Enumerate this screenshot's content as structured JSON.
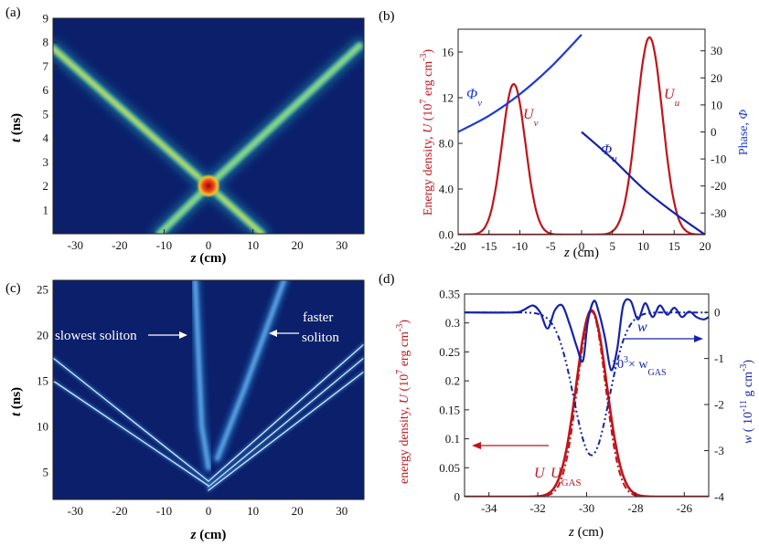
{
  "panels": {
    "a": {
      "label": "(a)"
    },
    "b": {
      "label": "(b)"
    },
    "c": {
      "label": "(c)"
    },
    "d": {
      "label": "(d)"
    }
  },
  "colors": {
    "heatmap_bg": "#0b1f6b",
    "red_curve": "#c0141b",
    "blue_curve": "#1a3ad8",
    "dark_blue_curve": "#1523a8"
  },
  "chart_data": [
    {
      "id": "a",
      "type": "heatmap",
      "xlabel": "z (cm)",
      "ylabel": "t (ns)",
      "xlim": [
        -35,
        35
      ],
      "ylim": [
        0,
        9
      ],
      "xticks": [
        -30,
        -20,
        -10,
        0,
        10,
        20,
        30
      ],
      "yticks": [
        1,
        2,
        3,
        4,
        5,
        6,
        7,
        8,
        9
      ],
      "tracks": [
        {
          "name": "",
          "points": [
            [
              -35,
              7.75
            ],
            [
              0,
              2.0
            ],
            [
              12,
              0
            ]
          ]
        },
        {
          "name": "",
          "points": [
            [
              34,
              7.85
            ],
            [
              0,
              2.0
            ],
            [
              -11,
              0
            ]
          ]
        }
      ],
      "collision": [
        0,
        2.0
      ]
    },
    {
      "id": "b",
      "type": "line",
      "xlabel": "z (cm)",
      "ylabel": "Energy density, U (10^7 erg cm^-3)",
      "y2label": "Phase, Φ",
      "xlim": [
        -20,
        20
      ],
      "ylim": [
        0,
        18
      ],
      "y2lim": [
        -38,
        38
      ],
      "xticks": [
        -20,
        -15,
        -10,
        -5,
        0,
        5,
        10,
        15,
        20
      ],
      "yticks": [
        0.0,
        4.0,
        8.0,
        12,
        16
      ],
      "ytick_labels": [
        "0.0",
        "4.0",
        "8.0",
        "12",
        "16"
      ],
      "y2ticks": [
        -30,
        -20,
        -10,
        0,
        10,
        20,
        30
      ],
      "series": [
        {
          "name": "U_v",
          "axis": "left",
          "shape": "gaussian",
          "center": -11,
          "sigma": 1.9,
          "peak": 13.2
        },
        {
          "name": "U_u",
          "axis": "left",
          "shape": "gaussian",
          "center": 11,
          "sigma": 2.1,
          "peak": 17.3
        },
        {
          "name": "Φ_v",
          "axis": "right",
          "x": [
            -20,
            -15,
            -10,
            -5,
            0
          ],
          "y": [
            0,
            6,
            14,
            24,
            36
          ]
        },
        {
          "name": "Φ_u",
          "axis": "right",
          "x": [
            0,
            5,
            10,
            15,
            20
          ],
          "y": [
            0,
            -10,
            -21,
            -30,
            -38
          ]
        }
      ],
      "annotations": {
        "phi_v": {
          "sym": "Φ",
          "sub": "v"
        },
        "u_v": {
          "sym": "U",
          "sub": "v"
        },
        "phi_u": {
          "sym": "Φ",
          "sub": "u"
        },
        "u_u": {
          "sym": "U",
          "sub": "u"
        }
      }
    },
    {
      "id": "c",
      "type": "heatmap",
      "xlabel": "z (cm)",
      "ylabel": "t (ns)",
      "xlim": [
        -35,
        35
      ],
      "ylim": [
        2,
        26
      ],
      "xticks": [
        -30,
        -20,
        -10,
        0,
        10,
        20,
        30
      ],
      "yticks": [
        5,
        10,
        15,
        20,
        25
      ],
      "tracks": [
        {
          "name": "slowest soliton",
          "points": [
            [
              -3,
              26
            ],
            [
              -1.5,
              10
            ],
            [
              0,
              5.5
            ]
          ]
        },
        {
          "name": "faster soliton",
          "points": [
            [
              17,
              26
            ],
            [
              8,
              14
            ],
            [
              2,
              6.5
            ]
          ]
        },
        {
          "name": "",
          "points": [
            [
              0,
              4
            ],
            [
              35,
              19
            ]
          ]
        },
        {
          "name": "",
          "points": [
            [
              0,
              3.4
            ],
            [
              35,
              17.5
            ]
          ]
        },
        {
          "name": "",
          "points": [
            [
              0,
              3
            ],
            [
              35,
              16
            ]
          ]
        },
        {
          "name": "",
          "points": [
            [
              0,
              4
            ],
            [
              -35,
              17.5
            ]
          ]
        },
        {
          "name": "",
          "points": [
            [
              0,
              3.5
            ],
            [
              -35,
              15
            ]
          ]
        }
      ],
      "annotations": {
        "slowest": "slowest soliton",
        "faster_1": "faster",
        "faster_2": "soliton"
      }
    },
    {
      "id": "d",
      "type": "line",
      "xlabel": "z (cm)",
      "ylabel": "energy density, U (10^7 erg cm^-3)",
      "y2label": "w ( 10^-11 g cm^-3)",
      "xlim": [
        -35,
        -25
      ],
      "ylim": [
        0,
        0.35
      ],
      "y2lim": [
        -4,
        0.4
      ],
      "xticks": [
        -34,
        -32,
        -30,
        -28,
        -26
      ],
      "yticks": [
        0,
        0.05,
        0.1,
        0.15,
        0.2,
        0.25,
        0.3,
        0.35
      ],
      "ytick_labels": [
        "0",
        "0.05",
        "0.1",
        "0.15",
        "0.2",
        "0.25",
        "0.3",
        "0.35"
      ],
      "y2ticks": [
        0,
        -1,
        -2,
        -3,
        -4
      ],
      "series": [
        {
          "name": "U",
          "axis": "left",
          "shape": "gaussian",
          "center": -29.8,
          "sigma": 0.62,
          "peak": 0.322
        },
        {
          "name": "U_GAS",
          "axis": "left",
          "shape": "gaussian",
          "center": -29.8,
          "sigma": 0.57,
          "peak": 0.32
        },
        {
          "name": "w",
          "axis": "right",
          "x": [
            -35,
            -33,
            -32.6,
            -32.2,
            -31.9,
            -31.6,
            -31.3,
            -31.0,
            -30.7,
            -30.4,
            -30.15,
            -29.95,
            -29.7,
            -29.5,
            -29.25,
            -29.0,
            -28.75,
            -28.5,
            -28.2,
            -27.9,
            -27.6,
            -27.3,
            -27.0,
            -26.7,
            -26.4,
            -26.1,
            -25.8,
            -25.5,
            -25.2,
            -25
          ],
          "y": [
            0,
            0,
            0.05,
            0.15,
            0,
            -0.35,
            0.05,
            0.15,
            -0.25,
            -0.75,
            -1.05,
            -0.2,
            0.25,
            0,
            -0.55,
            -1.25,
            -0.8,
            0.15,
            0.25,
            -0.15,
            0.2,
            -0.1,
            0.15,
            -0.05,
            0.1,
            -0.1,
            0.02,
            -0.1,
            -0.15,
            -0.1
          ]
        },
        {
          "name": "10^3×w_GAS",
          "axis": "right",
          "shape": "gaussian_dip",
          "center": -29.8,
          "sigma": 0.72,
          "depth": -3.1
        }
      ],
      "annotations": {
        "w": "w",
        "wgas_prefix": "10",
        "wgas_exp": "3",
        "wgas_mid": "× w",
        "wgas_sub": "GAS",
        "u_label": "U",
        "ugas_label": "U",
        "ugas_sub": "GAS"
      }
    }
  ]
}
